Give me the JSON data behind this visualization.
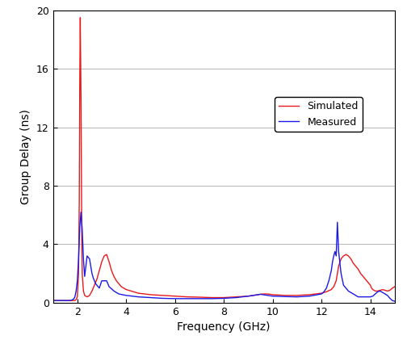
{
  "xlabel": "Frequency (GHz)",
  "ylabel": "Group Delay (ns)",
  "xlim": [
    1.0,
    15.0
  ],
  "ylim": [
    0,
    20
  ],
  "yticks": [
    0,
    4,
    8,
    12,
    16,
    20
  ],
  "xticks": [
    2,
    4,
    6,
    8,
    10,
    12,
    14
  ],
  "simulated_color": "#e8191a",
  "measured_color": "#1a1ae8",
  "legend_labels": [
    "Simulated",
    "Measured"
  ],
  "background_color": "#ffffff",
  "simulated_x": [
    1.0,
    1.5,
    1.7,
    1.85,
    1.9,
    1.95,
    2.0,
    2.05,
    2.08,
    2.1,
    2.12,
    2.15,
    2.18,
    2.2,
    2.25,
    2.3,
    2.4,
    2.5,
    2.6,
    2.7,
    2.8,
    2.9,
    3.0,
    3.1,
    3.2,
    3.3,
    3.4,
    3.5,
    3.6,
    3.7,
    3.8,
    4.0,
    4.5,
    5.0,
    5.5,
    6.0,
    6.5,
    7.0,
    7.5,
    8.0,
    8.5,
    9.0,
    9.2,
    9.4,
    9.6,
    9.8,
    10.0,
    10.5,
    11.0,
    11.5,
    12.0,
    12.2,
    12.4,
    12.5,
    12.6,
    12.65,
    12.7,
    12.8,
    12.9,
    13.0,
    13.1,
    13.2,
    13.3,
    13.5,
    13.6,
    13.7,
    13.8,
    13.9,
    14.0,
    14.05,
    14.1,
    14.2,
    14.3,
    14.4,
    14.5,
    14.6,
    14.7,
    14.8,
    14.9,
    15.0
  ],
  "simulated_y": [
    0.15,
    0.15,
    0.15,
    0.15,
    0.15,
    0.2,
    0.4,
    2.0,
    7.0,
    15.0,
    19.5,
    14.0,
    5.0,
    2.0,
    0.8,
    0.5,
    0.4,
    0.5,
    0.8,
    1.2,
    1.6,
    2.2,
    2.8,
    3.2,
    3.3,
    2.8,
    2.2,
    1.8,
    1.5,
    1.3,
    1.1,
    0.9,
    0.65,
    0.55,
    0.5,
    0.45,
    0.4,
    0.38,
    0.35,
    0.35,
    0.4,
    0.45,
    0.5,
    0.55,
    0.6,
    0.6,
    0.55,
    0.5,
    0.5,
    0.55,
    0.65,
    0.75,
    0.9,
    1.1,
    1.5,
    2.0,
    2.5,
    3.0,
    3.2,
    3.3,
    3.2,
    3.0,
    2.7,
    2.3,
    2.0,
    1.8,
    1.6,
    1.4,
    1.2,
    1.0,
    0.9,
    0.8,
    0.8,
    0.85,
    0.9,
    0.85,
    0.8,
    0.85,
    1.0,
    1.1
  ],
  "measured_x": [
    1.0,
    1.5,
    1.7,
    1.8,
    1.85,
    1.9,
    1.95,
    2.0,
    2.05,
    2.1,
    2.15,
    2.2,
    2.25,
    2.3,
    2.35,
    2.4,
    2.5,
    2.6,
    2.65,
    2.7,
    2.75,
    2.8,
    2.9,
    3.0,
    3.1,
    3.2,
    3.3,
    3.5,
    3.7,
    4.0,
    4.5,
    5.0,
    5.5,
    6.0,
    6.5,
    7.0,
    7.5,
    8.0,
    8.5,
    9.0,
    9.2,
    9.4,
    9.5,
    9.6,
    9.8,
    10.0,
    10.5,
    11.0,
    11.5,
    12.0,
    12.1,
    12.2,
    12.3,
    12.4,
    12.45,
    12.5,
    12.55,
    12.6,
    12.65,
    12.7,
    12.8,
    12.9,
    13.0,
    13.1,
    13.5,
    14.0,
    14.1,
    14.2,
    14.3,
    14.4,
    14.5,
    14.6,
    14.7,
    14.8,
    14.9,
    15.0
  ],
  "measured_y": [
    0.15,
    0.15,
    0.15,
    0.2,
    0.25,
    0.4,
    0.8,
    1.5,
    3.0,
    5.2,
    6.2,
    5.0,
    3.0,
    1.8,
    2.5,
    3.2,
    3.0,
    2.0,
    1.7,
    1.5,
    1.3,
    1.2,
    1.0,
    1.5,
    1.5,
    1.5,
    1.1,
    0.8,
    0.6,
    0.5,
    0.4,
    0.35,
    0.3,
    0.28,
    0.28,
    0.28,
    0.28,
    0.3,
    0.35,
    0.45,
    0.5,
    0.55,
    0.58,
    0.55,
    0.5,
    0.45,
    0.42,
    0.4,
    0.45,
    0.6,
    0.75,
    1.0,
    1.5,
    2.2,
    2.8,
    3.2,
    3.5,
    3.2,
    5.5,
    3.5,
    2.0,
    1.2,
    1.0,
    0.8,
    0.4,
    0.4,
    0.45,
    0.6,
    0.75,
    0.8,
    0.7,
    0.6,
    0.5,
    0.3,
    0.15,
    0.1
  ]
}
